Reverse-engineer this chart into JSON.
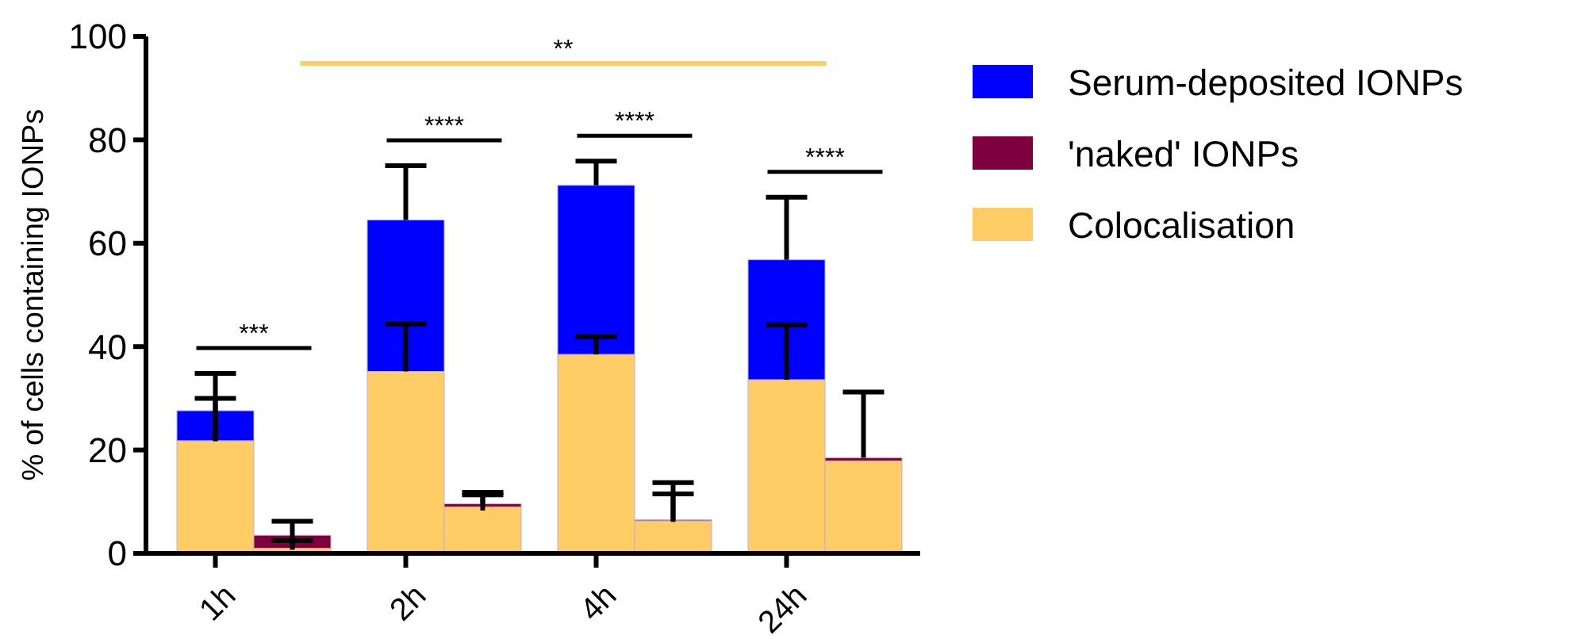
{
  "chart_data": {
    "type": "bar",
    "stacked": true,
    "ylabel": "% of cells containing IONPs",
    "categories": [
      "1h",
      null,
      "2h",
      null,
      "4h",
      null,
      "24h",
      null
    ],
    "series": [
      {
        "name": "Colocalisation",
        "color": "#ffcc66",
        "values": [
          21.8,
          1,
          35.2,
          9,
          38.5,
          6.3,
          33.6,
          17.9
        ],
        "errors": [
          [
            21.8,
            30
          ],
          [
            1,
            2.5
          ],
          [
            35.2,
            44.4
          ],
          [
            8.3,
            11.3
          ],
          [
            38.5,
            41.9
          ],
          [
            6.1,
            11.5
          ],
          [
            33.6,
            44.2
          ],
          null
        ]
      },
      {
        "name": "Serum-deposited IONPs",
        "color": "#0000ff",
        "values": [
          5.8,
          null,
          29.3,
          null,
          32.7,
          null,
          23.2,
          null
        ],
        "errors": [
          [
            21.7,
            34.8
          ],
          null,
          [
            64.5,
            75
          ],
          null,
          [
            71.2,
            75.9
          ],
          null,
          [
            56.8,
            68.9
          ],
          null
        ]
      },
      {
        "name": "'naked' IONPs",
        "color": "#7f003f",
        "values": [
          null,
          2.5,
          null,
          0.6,
          null,
          0.2,
          null,
          0.6
        ],
        "errors": [
          null,
          [
            0.7,
            6.2
          ],
          null,
          [
            9.6,
            11.8
          ],
          null,
          [
            6.5,
            13.7
          ],
          null,
          [
            18.5,
            31.2
          ]
        ]
      }
    ],
    "ylim": [
      0,
      100
    ],
    "yticks": [
      0,
      20,
      40,
      60,
      80,
      100
    ],
    "grid": false,
    "legend": "right",
    "annotations": [
      "***",
      "****",
      "****",
      "****",
      "**"
    ]
  }
}
